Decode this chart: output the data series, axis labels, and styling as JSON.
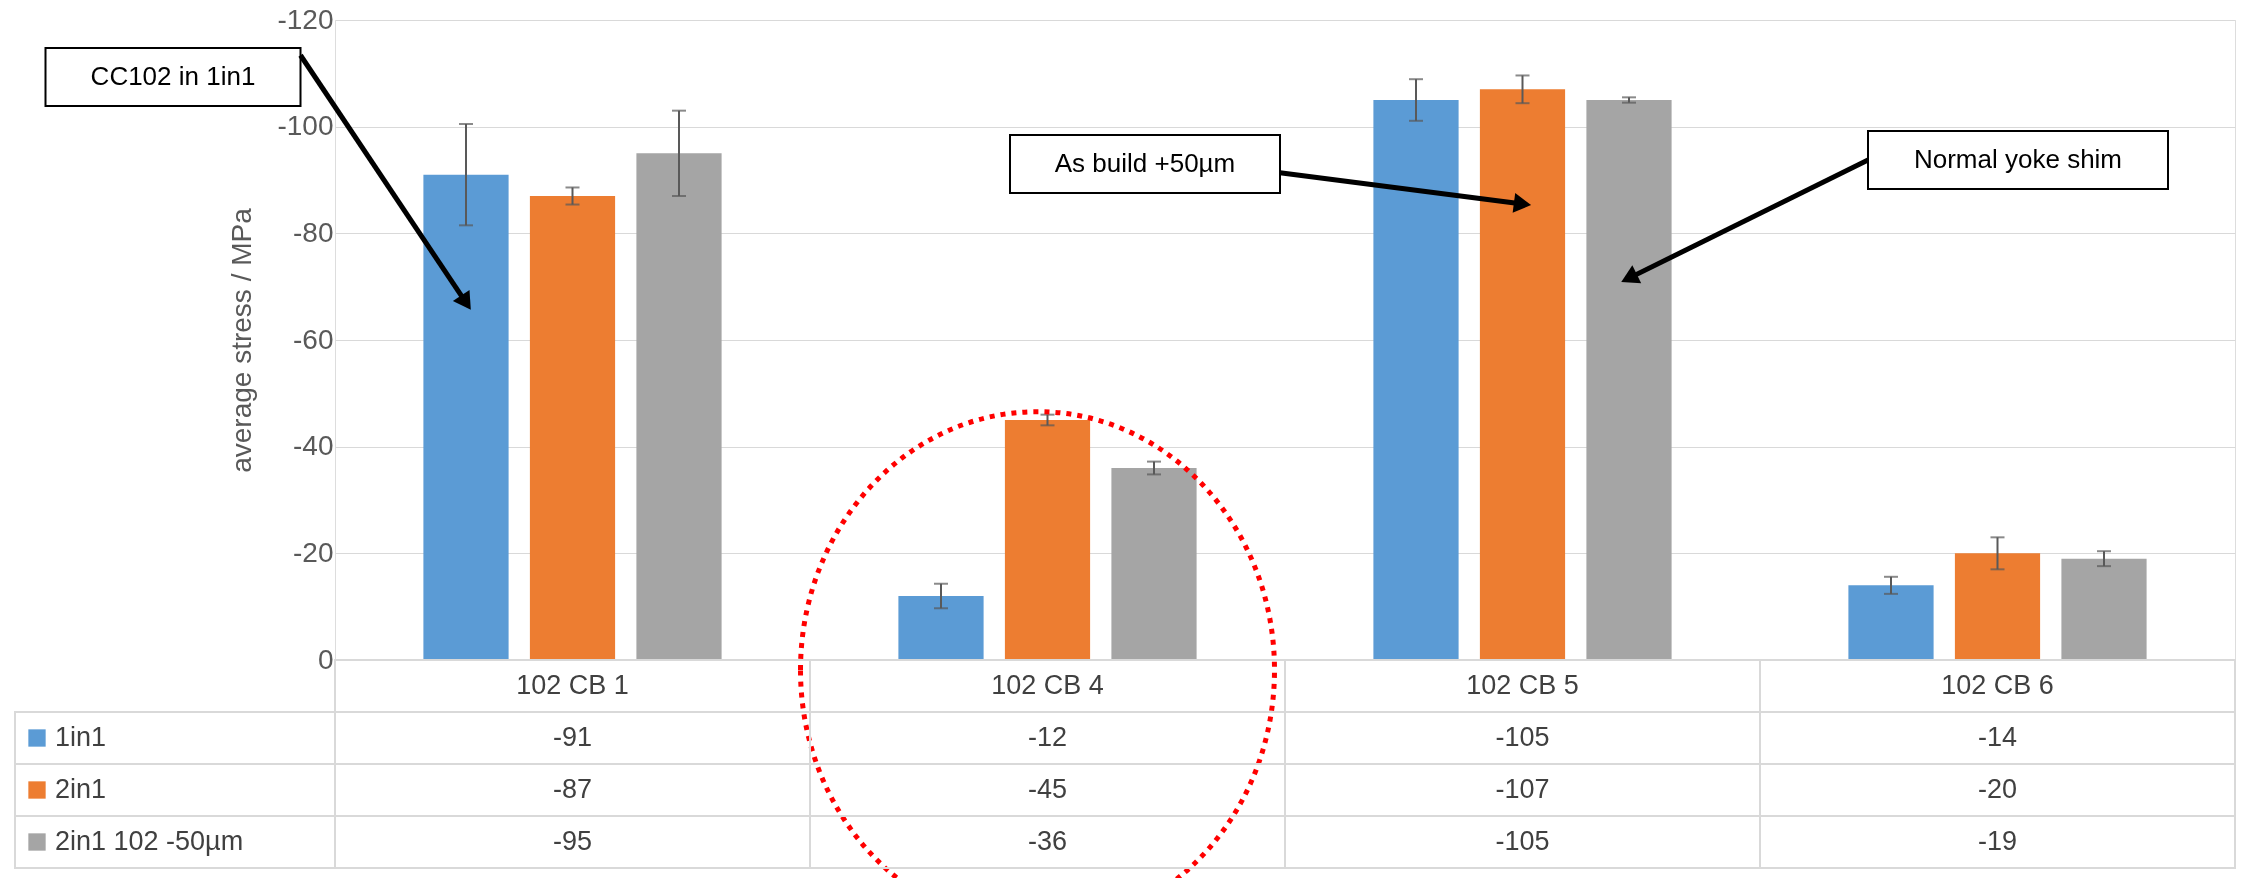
{
  "chart_data": {
    "type": "bar",
    "ylabel": "average stress / MPa",
    "categories": [
      "102 CB 1",
      "102 CB 4",
      "102 CB 5",
      "102 CB 6"
    ],
    "series": [
      {
        "name": "1in1",
        "color": "#5b9bd5",
        "values": [
          -91,
          -12,
          -105,
          -14
        ],
        "errors": [
          9.5,
          2.3,
          3.9,
          1.6
        ]
      },
      {
        "name": "2in1",
        "color": "#ed7d31",
        "values": [
          -87,
          -45,
          -107,
          -20
        ],
        "errors": [
          1.6,
          1,
          2.6,
          3
        ]
      },
      {
        "name": "2in1 102 -50µm",
        "color": "#a5a5a5",
        "values": [
          -95,
          -36,
          -105,
          -19
        ],
        "errors": [
          8,
          1.2,
          0.5,
          1.4
        ]
      }
    ],
    "ylim": [
      0,
      -120
    ],
    "yticks": [
      0,
      -20,
      -40,
      -60,
      -80,
      -100,
      -120
    ],
    "grid": "y",
    "data_labels": true,
    "legend": "bottom",
    "annotations": [
      "CC102 in 1in1",
      "As build +50µm",
      "Normal yoke shim"
    ]
  }
}
